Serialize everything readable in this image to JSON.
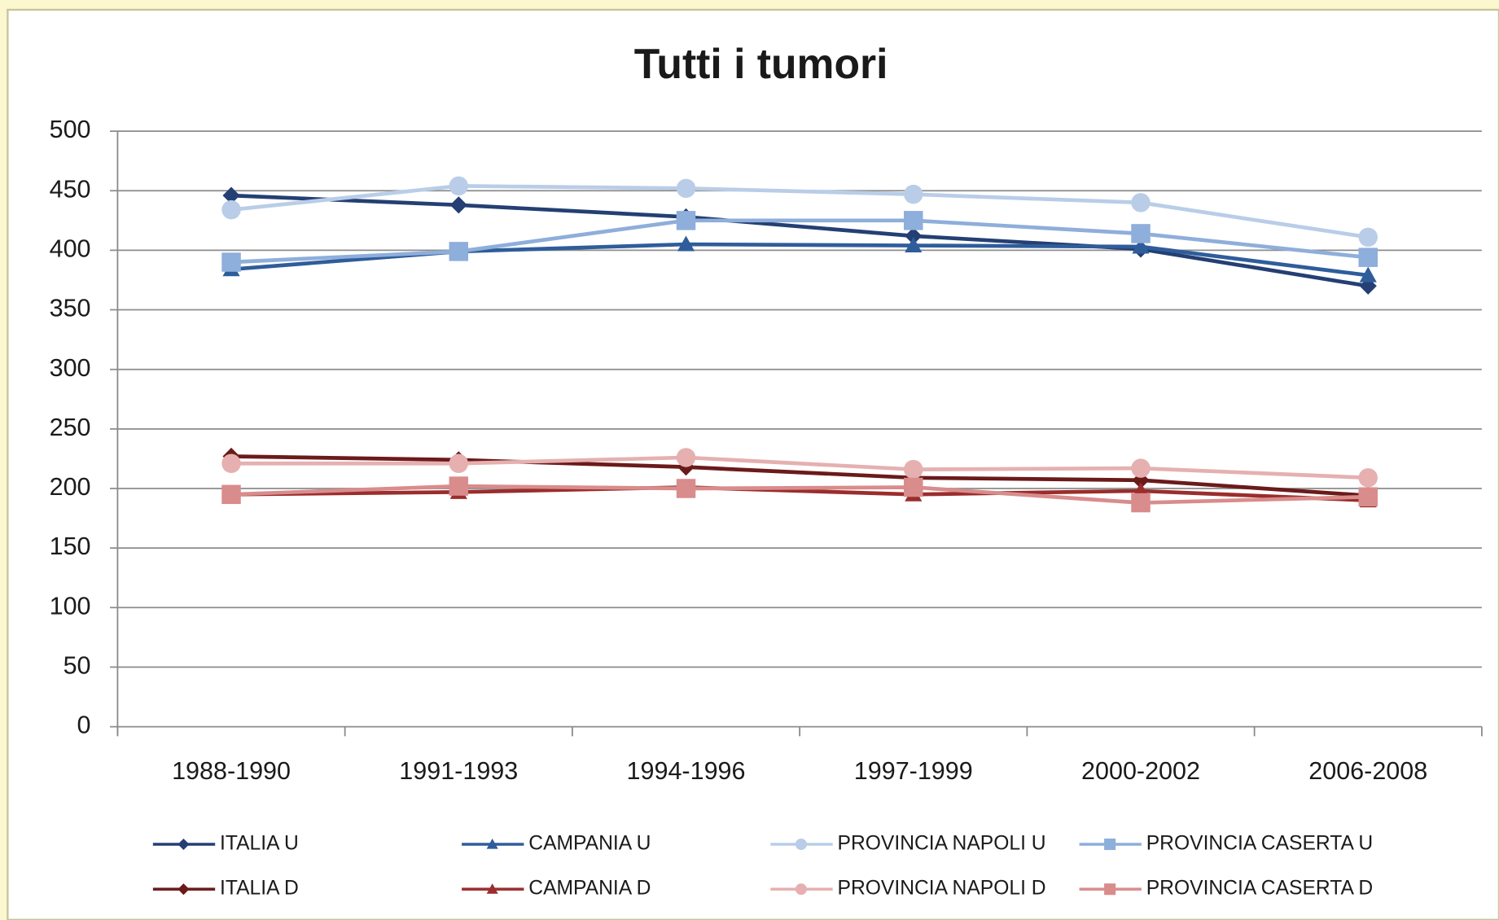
{
  "chart_data": {
    "type": "line",
    "title": "Tutti i tumori",
    "categories": [
      "1988-1990",
      "1991-1993",
      "1994-1996",
      "1997-1999",
      "2000-2002",
      "2006-2008"
    ],
    "ylim": [
      0,
      500
    ],
    "yticks": [
      0,
      50,
      100,
      150,
      200,
      250,
      300,
      350,
      400,
      450,
      500
    ],
    "grid": true,
    "series": [
      {
        "name": "ITALIA U",
        "color": "#243f73",
        "marker": "diamond",
        "values": [
          446,
          438,
          428,
          412,
          401,
          370
        ]
      },
      {
        "name": "CAMPANIA U",
        "color": "#2f5d9b",
        "marker": "triangle",
        "values": [
          384,
          399,
          405,
          404,
          403,
          379
        ]
      },
      {
        "name": "PROVINCIA NAPOLI U",
        "color": "#b9cde8",
        "marker": "circle",
        "values": [
          434,
          454,
          452,
          447,
          440,
          411
        ]
      },
      {
        "name": "PROVINCIA CASERTA U",
        "color": "#8eaedb",
        "marker": "square",
        "values": [
          390,
          399,
          425,
          425,
          414,
          394
        ]
      },
      {
        "name": "ITALIA D",
        "color": "#6b1a1a",
        "marker": "diamond",
        "values": [
          227,
          224,
          218,
          209,
          207,
          194
        ]
      },
      {
        "name": "CAMPANIA D",
        "color": "#9b2d2d",
        "marker": "triangle",
        "values": [
          195,
          197,
          201,
          195,
          198,
          190
        ]
      },
      {
        "name": "PROVINCIA NAPOLI D",
        "color": "#e6b0b0",
        "marker": "circle",
        "values": [
          221,
          221,
          226,
          216,
          217,
          209
        ]
      },
      {
        "name": "PROVINCIA CASERTA D",
        "color": "#d98c8c",
        "marker": "square",
        "values": [
          195,
          202,
          200,
          201,
          188,
          193
        ]
      }
    ]
  }
}
